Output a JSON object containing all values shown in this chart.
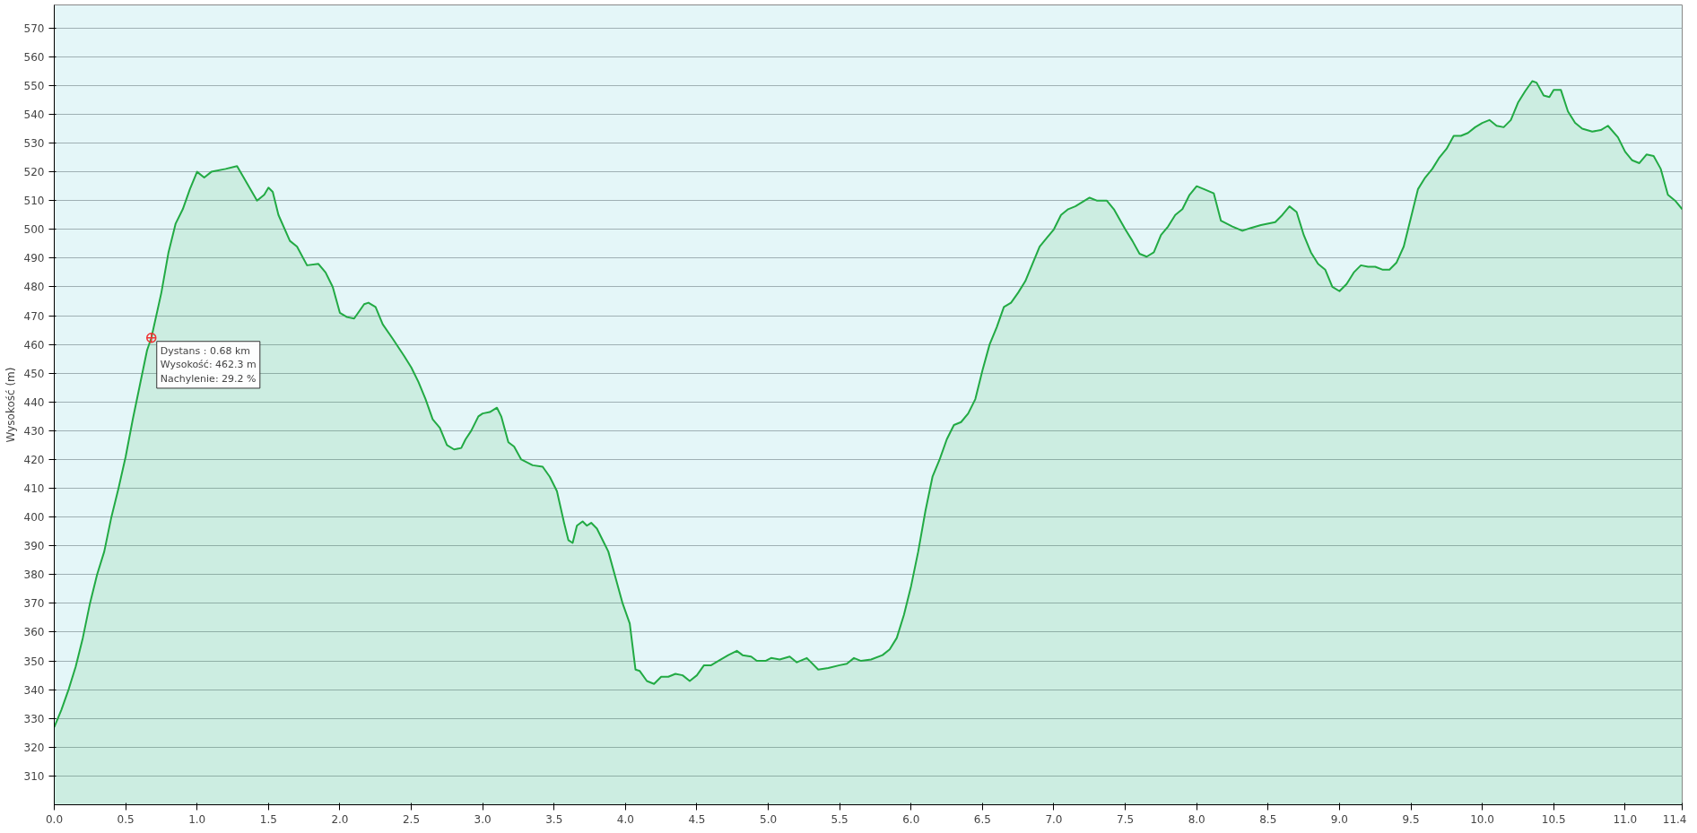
{
  "chart_data": {
    "type": "area",
    "ylabel": "Wysokość (m)",
    "xlim": [
      0,
      11.4
    ],
    "ylim": [
      300,
      578
    ],
    "xticks": [
      {
        "value": 0,
        "label": "0.0"
      },
      0.5,
      {
        "value": 1,
        "label": "1.0"
      },
      1.5,
      {
        "value": 2,
        "label": "2.0"
      },
      2.5,
      {
        "value": 3,
        "label": "3.0"
      },
      3.5,
      {
        "value": 4,
        "label": "4.0"
      },
      4.5,
      {
        "value": 5,
        "label": "5.0"
      },
      5.5,
      {
        "value": 6,
        "label": "6.0"
      },
      6.5,
      {
        "value": 7,
        "label": "7.0"
      },
      7.5,
      {
        "value": 8,
        "label": "8.0"
      },
      8.5,
      {
        "value": 9,
        "label": "9.0"
      },
      9.5,
      {
        "value": 10,
        "label": "10.0"
      },
      10.5,
      {
        "value": 11,
        "label": "11.0"
      },
      11.4
    ],
    "yticks": [
      310,
      320,
      330,
      340,
      350,
      360,
      370,
      380,
      390,
      400,
      410,
      420,
      430,
      440,
      450,
      460,
      470,
      480,
      490,
      500,
      510,
      520,
      530,
      540,
      550,
      560,
      570
    ],
    "grid": "y",
    "annotations": [
      {
        "text": "Dystans : 0.68 km\nWysokość: 462.3 m\nNachylenie: 29.2 %",
        "x": 0.68,
        "y": 462.3
      }
    ],
    "series": [
      {
        "color": "#22aa44",
        "x": [
          0,
          0.05,
          0.1,
          0.15,
          0.2,
          0.25,
          0.3,
          0.35,
          0.4,
          0.45,
          0.5,
          0.55,
          0.6,
          0.65,
          0.68,
          0.75,
          0.8,
          0.85,
          0.9,
          0.95,
          1.0,
          1.05,
          1.1,
          1.2,
          1.28,
          1.35,
          1.42,
          1.47,
          1.5,
          1.53,
          1.57,
          1.65,
          1.7,
          1.77,
          1.85,
          1.9,
          1.95,
          2.0,
          2.05,
          2.1,
          2.17,
          2.2,
          2.25,
          2.3,
          2.37,
          2.45,
          2.5,
          2.55,
          2.6,
          2.65,
          2.7,
          2.75,
          2.8,
          2.85,
          2.88,
          2.92,
          2.97,
          3.0,
          3.05,
          3.1,
          3.13,
          3.18,
          3.22,
          3.27,
          3.35,
          3.42,
          3.47,
          3.52,
          3.57,
          3.6,
          3.63,
          3.66,
          3.7,
          3.73,
          3.76,
          3.8,
          3.85,
          3.88,
          3.93,
          3.98,
          4.03,
          4.07,
          4.1,
          4.15,
          4.2,
          4.25,
          4.3,
          4.35,
          4.4,
          4.45,
          4.5,
          4.55,
          4.6,
          4.65,
          4.72,
          4.78,
          4.82,
          4.88,
          4.92,
          4.98,
          5.02,
          5.08,
          5.15,
          5.2,
          5.27,
          5.35,
          5.42,
          5.5,
          5.55,
          5.6,
          5.65,
          5.72,
          5.8,
          5.85,
          5.9,
          5.95,
          6.0,
          6.05,
          6.1,
          6.15,
          6.2,
          6.25,
          6.3,
          6.35,
          6.4,
          6.45,
          6.5,
          6.55,
          6.6,
          6.65,
          6.7,
          6.75,
          6.8,
          6.85,
          6.9,
          6.95,
          7.0,
          7.05,
          7.1,
          7.15,
          7.25,
          7.3,
          7.37,
          7.42,
          7.5,
          7.55,
          7.6,
          7.65,
          7.7,
          7.75,
          7.8,
          7.85,
          7.9,
          7.95,
          8.0,
          8.05,
          8.12,
          8.17,
          8.25,
          8.32,
          8.38,
          8.45,
          8.55,
          8.6,
          8.65,
          8.7,
          8.75,
          8.8,
          8.85,
          8.9,
          8.95,
          9.0,
          9.05,
          9.1,
          9.15,
          9.2,
          9.25,
          9.3,
          9.35,
          9.4,
          9.45,
          9.5,
          9.55,
          9.6,
          9.65,
          9.7,
          9.75,
          9.8,
          9.85,
          9.9,
          9.95,
          10.0,
          10.05,
          10.1,
          10.15,
          10.2,
          10.25,
          10.3,
          10.35,
          10.38,
          10.43,
          10.47,
          10.5,
          10.55,
          10.6,
          10.65,
          10.7,
          10.77,
          10.83,
          10.88,
          10.95,
          11.0,
          11.05,
          11.1,
          11.15,
          11.2,
          11.25,
          11.3,
          11.35,
          11.4
        ],
        "values": [
          327,
          333,
          340,
          348,
          358,
          370,
          380,
          388,
          400,
          410,
          421,
          434,
          446,
          458,
          462.3,
          478,
          492,
          502,
          507,
          514,
          520,
          518,
          520,
          521,
          522,
          516,
          510,
          512,
          514.5,
          513,
          505,
          496,
          494,
          487.5,
          488,
          485,
          480,
          471,
          469.5,
          469,
          474,
          474.5,
          473,
          467,
          462,
          456,
          452,
          447,
          441,
          434,
          431,
          425,
          423.5,
          424,
          427,
          430,
          435,
          436,
          436.5,
          438,
          435,
          426,
          424.5,
          420,
          418,
          417.5,
          414,
          409,
          398,
          392,
          391,
          397,
          398.5,
          397,
          398,
          396,
          391,
          388,
          379,
          370,
          363,
          347,
          346.5,
          343,
          342,
          344.5,
          344.5,
          345.5,
          345,
          343,
          345,
          348.5,
          348.5,
          350,
          352,
          353.5,
          352,
          351.5,
          350,
          350,
          351,
          350.5,
          351.5,
          349.5,
          351,
          347,
          347.5,
          348.5,
          349,
          351,
          350,
          350.5,
          352,
          354,
          358,
          366,
          376,
          388,
          402,
          414,
          420,
          427,
          432,
          433,
          436,
          441,
          451,
          460,
          466,
          473,
          474.5,
          478,
          482,
          488,
          494,
          497,
          500,
          505,
          507,
          508,
          511,
          510,
          510,
          507,
          500,
          496,
          491.5,
          490.5,
          492,
          498,
          501,
          505,
          507,
          512,
          515,
          514,
          512.5,
          503,
          501,
          499.5,
          500.5,
          501.5,
          502.5,
          505,
          508,
          506,
          498,
          492,
          488,
          486,
          480,
          478.5,
          481,
          485,
          487.5,
          487,
          487,
          486,
          486,
          488.5,
          494,
          504,
          514,
          518,
          521,
          525,
          528,
          532.5,
          532.5,
          533.5,
          535.5,
          537,
          538,
          536,
          535.5,
          538,
          544,
          548,
          551.5,
          551,
          546.5,
          546,
          548.5,
          548.5,
          541,
          537,
          535,
          534,
          534.5,
          536,
          532,
          527,
          524,
          523,
          526,
          525.5,
          521,
          512,
          510,
          507
        ]
      }
    ]
  }
}
